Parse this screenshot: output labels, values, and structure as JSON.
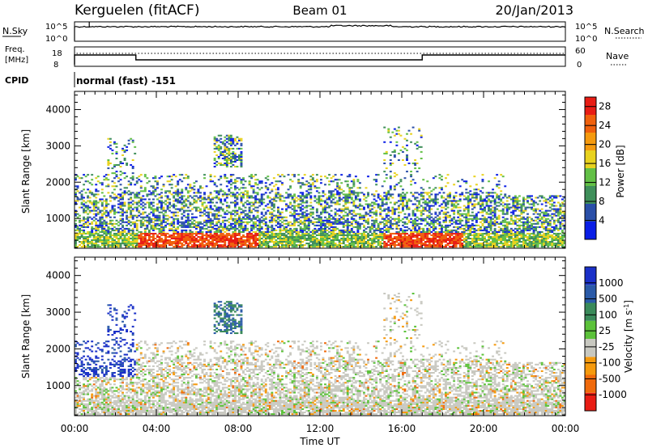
{
  "header": {
    "station": "Kerguelen (fitACF)",
    "beam": "Beam 01",
    "date": "20/Jan/2013"
  },
  "noise_panel": {
    "left_label": "N.Sky",
    "right_label": "N.Search",
    "left_ticks": [
      "10^5",
      "10^0"
    ],
    "right_ticks": [
      "10^5",
      "10^0"
    ]
  },
  "freq_panel": {
    "left_label_1": "Freq.",
    "left_label_2": "[MHz]",
    "left_ticks": [
      "18",
      "8"
    ],
    "right_label": "Nave",
    "right_ticks": [
      "60",
      "0"
    ]
  },
  "cpid": {
    "label": "CPID",
    "value": "normal (fast) -151"
  },
  "colors": {
    "power_scale": [
      "#0a1ee6",
      "#2a4fa8",
      "#3f8f5a",
      "#62c046",
      "#e8d21e",
      "#f59a0e",
      "#f0600c",
      "#e81c14"
    ],
    "velocity_scale": [
      "#1a30c8",
      "#2a5aa8",
      "#3a8a5a",
      "#5cc23a",
      "#c8c8c0",
      "#f59a0e",
      "#f06a0c",
      "#e81c14"
    ]
  },
  "chart_data": [
    {
      "type": "heatmap",
      "title": "Power",
      "ylabel": "Slant Range [km]",
      "ylim": [
        180,
        4500
      ],
      "xlim": [
        0,
        24
      ],
      "y_ticks": [
        "1000",
        "2000",
        "3000",
        "4000"
      ],
      "y_tick_values": [
        1000,
        2000,
        3000,
        4000
      ],
      "colorbar_label": "Power [dB]",
      "colorbar_ticks": [
        "4",
        "8",
        "12",
        "16",
        "20",
        "24",
        "28"
      ],
      "colorbar_range": [
        0,
        30
      ]
    },
    {
      "type": "heatmap",
      "title": "Velocity",
      "ylabel": "Slant Range [km]",
      "xlabel": "Time UT",
      "ylim": [
        180,
        4500
      ],
      "xlim": [
        0,
        24
      ],
      "x_ticks": [
        "00:00",
        "04:00",
        "08:00",
        "12:00",
        "16:00",
        "20:00",
        "00:00"
      ],
      "x_tick_values": [
        0,
        4,
        8,
        12,
        16,
        20,
        24
      ],
      "y_ticks": [
        "1000",
        "2000",
        "3000",
        "4000"
      ],
      "y_tick_values": [
        1000,
        2000,
        3000,
        4000
      ],
      "colorbar_label": "Velocity [m s-1]",
      "colorbar_ticks": [
        "1000",
        "500",
        "100",
        "25",
        "-25",
        "-100",
        "-500",
        "-1000"
      ]
    }
  ]
}
